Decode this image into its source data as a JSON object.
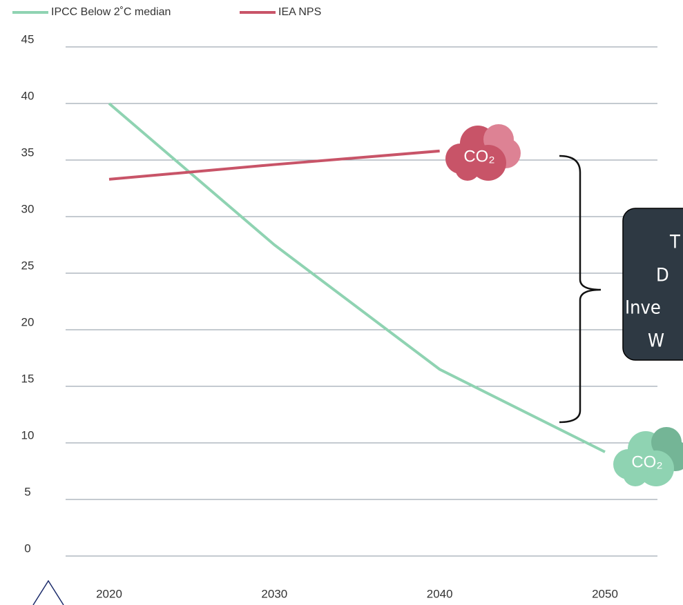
{
  "chart_data": {
    "type": "line",
    "x": [
      2020,
      2030,
      2040,
      2050
    ],
    "series": [
      {
        "name": "IPCC Below 2˚C median",
        "color": "#8fd3b2",
        "values": [
          40,
          27.5,
          16.5,
          9.2
        ]
      },
      {
        "name": "IEA NPS",
        "color": "#c85468",
        "values": [
          33.3,
          34.6,
          35.8,
          null
        ]
      }
    ],
    "xlim": [
      2020,
      2050
    ],
    "xticks": [
      2020,
      2030,
      2040,
      2050
    ],
    "ylim": [
      0,
      45
    ],
    "yticks": [
      0,
      5,
      10,
      15,
      20,
      25,
      30,
      35,
      40,
      45
    ],
    "grid": true,
    "legend": "top-left",
    "annotations": [
      "CO₂",
      "CO₂"
    ],
    "box_text": [
      "T",
      "D",
      "Inve",
      "W"
    ]
  }
}
